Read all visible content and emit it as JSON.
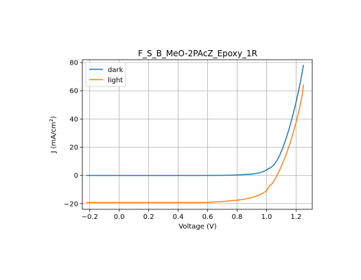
{
  "chart_data": {
    "type": "line",
    "title": "F_S_B_MeO-2PAcZ_Epoxy_1R",
    "xlabel": "Voltage (V)",
    "ylabel_main": "J (mA/cm",
    "ylabel_sup": "2",
    "ylabel_close": ")",
    "xlim": [
      -0.25,
      1.31
    ],
    "ylim": [
      -24,
      82
    ],
    "xticks": [
      -0.2,
      0.0,
      0.2,
      0.4,
      0.6,
      0.8,
      1.0,
      1.2
    ],
    "xtick_labels": [
      "−0.2",
      "0.0",
      "0.2",
      "0.4",
      "0.6",
      "0.8",
      "1.0",
      "1.2"
    ],
    "yticks": [
      -20,
      0,
      20,
      40,
      60,
      80
    ],
    "ytick_labels": [
      "−20",
      "0",
      "20",
      "40",
      "60",
      "80"
    ],
    "grid": true,
    "legend_position": "upper left",
    "series": [
      {
        "name": "dark",
        "color": "#1f77b4",
        "x": [
          -0.22,
          -0.1,
          0.0,
          0.1,
          0.2,
          0.3,
          0.4,
          0.5,
          0.6,
          0.7,
          0.75,
          0.8,
          0.85,
          0.9,
          0.95,
          0.98,
          1.0,
          1.03,
          1.05,
          1.07,
          1.09,
          1.11,
          1.13,
          1.15,
          1.17,
          1.19,
          1.21,
          1.23,
          1.25
        ],
        "y": [
          0,
          0,
          0,
          0,
          0,
          0,
          0,
          0,
          0,
          0.1,
          0.15,
          0.3,
          0.6,
          1.0,
          1.8,
          2.8,
          4.0,
          5.7,
          7.5,
          10.5,
          14.5,
          19.5,
          25.5,
          32.0,
          39.5,
          47.5,
          56.5,
          66.5,
          78.0
        ]
      },
      {
        "name": "light",
        "color": "#ff7f0e",
        "x": [
          -0.22,
          -0.1,
          0.0,
          0.1,
          0.2,
          0.3,
          0.4,
          0.5,
          0.55,
          0.6,
          0.65,
          0.7,
          0.75,
          0.8,
          0.85,
          0.9,
          0.95,
          0.98,
          1.0,
          1.02,
          1.04,
          1.06,
          1.08,
          1.1,
          1.12,
          1.14,
          1.16,
          1.18,
          1.2,
          1.22,
          1.24,
          1.25
        ],
        "y": [
          -19.2,
          -19.2,
          -19.2,
          -19.2,
          -19.2,
          -19.2,
          -19.2,
          -19.2,
          -19.2,
          -19.1,
          -18.8,
          -18.5,
          -18.0,
          -17.5,
          -16.8,
          -15.7,
          -13.9,
          -12.3,
          -10.8,
          -7.5,
          -5.5,
          -2.0,
          2.0,
          6.5,
          11.5,
          17.0,
          23.0,
          30.0,
          37.5,
          46.0,
          56.0,
          64.0
        ]
      }
    ]
  }
}
